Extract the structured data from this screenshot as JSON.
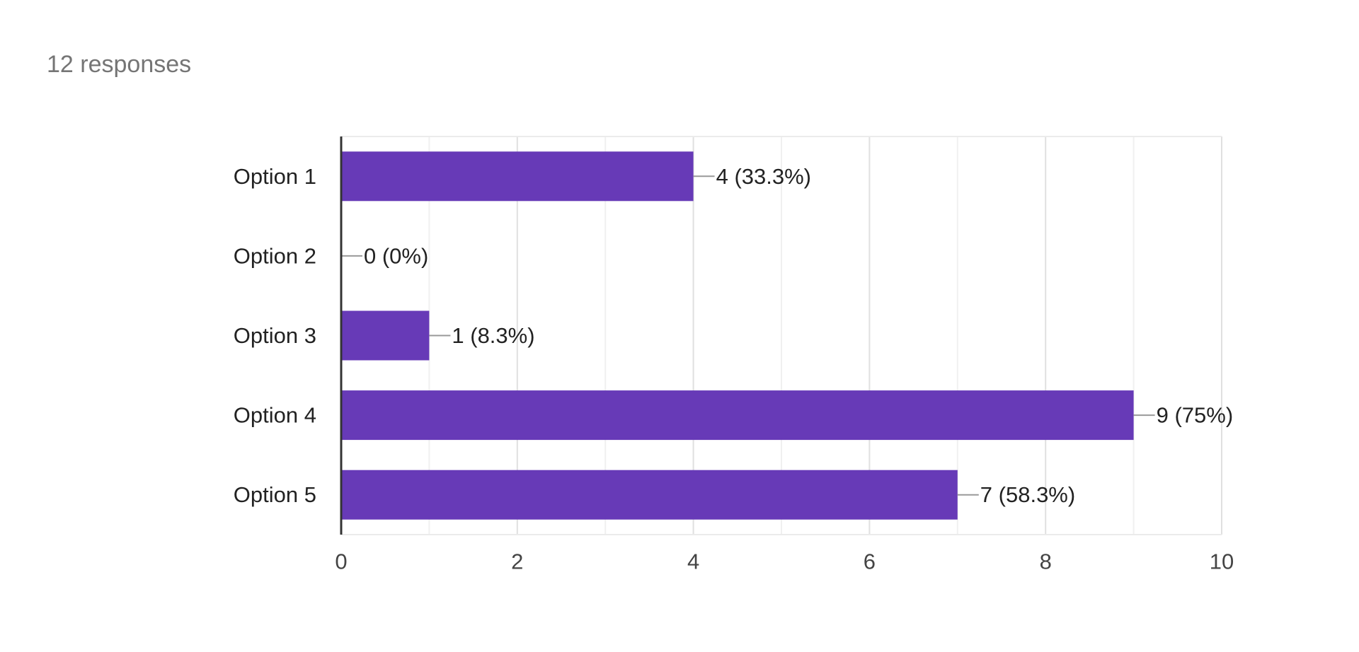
{
  "summary": {
    "responses_text": "12 responses"
  },
  "colors": {
    "bar": "#673ab7",
    "grid": "#e6e6e6",
    "axis": "#333333",
    "leader": "#999999",
    "text": "#222222",
    "tick_text": "#444444"
  },
  "chart_data": {
    "type": "bar",
    "orientation": "horizontal",
    "title": "",
    "xlabel": "",
    "ylabel": "",
    "categories": [
      "Option 1",
      "Option 2",
      "Option 3",
      "Option 4",
      "Option 5"
    ],
    "values": [
      4,
      0,
      1,
      9,
      7
    ],
    "data_labels": [
      "4 (33.3%)",
      "0 (0%)",
      "1 (8.3%)",
      "9 (75%)",
      "7 (58.3%)"
    ],
    "xlim": [
      0,
      10
    ],
    "x_ticks": [
      0,
      2,
      4,
      6,
      8,
      10
    ],
    "x_tick_labels": [
      "0",
      "2",
      "4",
      "6",
      "8",
      "10"
    ],
    "grid": true
  }
}
